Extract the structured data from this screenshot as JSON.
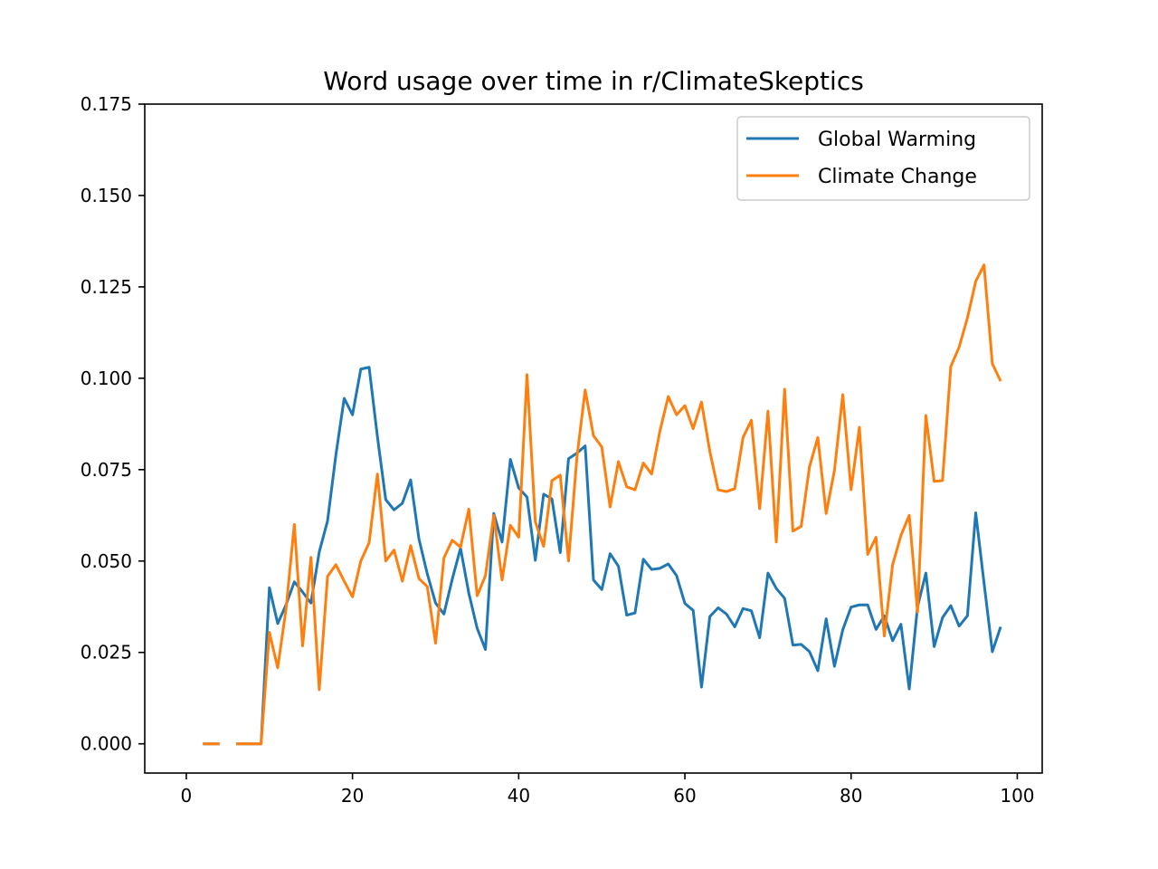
{
  "chart_data": {
    "type": "line",
    "title": "Word usage over time in r/ClimateSkeptics",
    "xlabel": "",
    "ylabel": "",
    "xlim": [
      -5,
      103
    ],
    "ylim": [
      -0.008,
      0.175
    ],
    "xticks": [
      0,
      20,
      40,
      60,
      80,
      100
    ],
    "yticks": [
      0.0,
      0.025,
      0.05,
      0.075,
      0.1,
      0.125,
      0.15,
      0.175
    ],
    "ytick_labels": [
      "0.000",
      "0.025",
      "0.050",
      "0.075",
      "0.100",
      "0.125",
      "0.150",
      "0.175"
    ],
    "xtick_labels": [
      "0",
      "20",
      "40",
      "60",
      "80",
      "100"
    ],
    "grid": false,
    "legend_position": "top-right",
    "x": [
      2,
      3,
      4,
      5,
      6,
      7,
      8,
      9,
      10,
      11,
      12,
      13,
      14,
      15,
      16,
      17,
      18,
      19,
      20,
      21,
      22,
      23,
      24,
      25,
      26,
      27,
      28,
      29,
      30,
      31,
      32,
      33,
      34,
      35,
      36,
      37,
      38,
      39,
      40,
      41,
      42,
      43,
      44,
      45,
      46,
      47,
      48,
      49,
      50,
      51,
      52,
      53,
      54,
      55,
      56,
      57,
      58,
      59,
      60,
      61,
      62,
      63,
      64,
      65,
      66,
      67,
      68,
      69,
      70,
      71,
      72,
      73,
      74,
      75,
      76,
      77,
      78,
      79,
      80,
      81,
      82,
      83,
      84,
      85,
      86,
      87,
      88,
      89,
      90,
      91,
      92,
      93,
      94,
      95,
      96,
      97,
      98
    ],
    "series": [
      {
        "name": "Global Warming",
        "color": "#1f77b4",
        "values": [
          0,
          0,
          0,
          null,
          0,
          0,
          0,
          0,
          0.0427,
          0.0329,
          0.038,
          0.0443,
          0.0415,
          0.0385,
          0.0525,
          0.061,
          0.079,
          0.0945,
          0.09,
          0.1025,
          0.103,
          0.084,
          0.0668,
          0.064,
          0.0658,
          0.0722,
          0.056,
          0.0465,
          0.0385,
          0.0355,
          0.045,
          0.0535,
          0.0412,
          0.0316,
          0.0258,
          0.063,
          0.0552,
          0.0778,
          0.07,
          0.0675,
          0.0502,
          0.0683,
          0.067,
          0.0523,
          0.078,
          0.0795,
          0.0815,
          0.0448,
          0.0422,
          0.052,
          0.0486,
          0.0352,
          0.0358,
          0.0505,
          0.0477,
          0.048,
          0.0492,
          0.046,
          0.0384,
          0.0365,
          0.0155,
          0.0348,
          0.0372,
          0.0355,
          0.032,
          0.037,
          0.0364,
          0.029,
          0.0467,
          0.0425,
          0.0398,
          0.027,
          0.0272,
          0.0252,
          0.02,
          0.0342,
          0.0212,
          0.0312,
          0.0374,
          0.038,
          0.038,
          0.0313,
          0.035,
          0.0282,
          0.0327,
          0.015,
          0.0375,
          0.0467,
          0.0266,
          0.0345,
          0.0378,
          0.0322,
          0.035,
          0.0632,
          0.044,
          0.0252,
          0.032
        ]
      },
      {
        "name": "Climate Change",
        "color": "#ff7f0e",
        "values": [
          0,
          0,
          0,
          null,
          0,
          0,
          0,
          0,
          0.0305,
          0.0208,
          0.0368,
          0.06,
          0.0268,
          0.051,
          0.0148,
          0.0458,
          0.049,
          0.0445,
          0.0402,
          0.05,
          0.055,
          0.0738,
          0.05,
          0.053,
          0.0445,
          0.0542,
          0.0452,
          0.043,
          0.0275,
          0.0508,
          0.0557,
          0.0538,
          0.0642,
          0.0405,
          0.046,
          0.0625,
          0.0448,
          0.0598,
          0.0565,
          0.101,
          0.0608,
          0.054,
          0.072,
          0.0735,
          0.05,
          0.0782,
          0.0968,
          0.0843,
          0.0812,
          0.0648,
          0.0772,
          0.0703,
          0.0695,
          0.0768,
          0.0738,
          0.0856,
          0.095,
          0.09,
          0.0925,
          0.0862,
          0.0935,
          0.08,
          0.0695,
          0.069,
          0.0698,
          0.0838,
          0.0885,
          0.0643,
          0.091,
          0.0552,
          0.097,
          0.0582,
          0.0595,
          0.0758,
          0.0838,
          0.063,
          0.0748,
          0.0955,
          0.0695,
          0.0866,
          0.0518,
          0.0565,
          0.0295,
          0.049,
          0.057,
          0.0625,
          0.036,
          0.0898,
          0.0718,
          0.072,
          0.1032,
          0.1085,
          0.1165,
          0.1265,
          0.131,
          0.104,
          0.0992
        ]
      }
    ]
  }
}
